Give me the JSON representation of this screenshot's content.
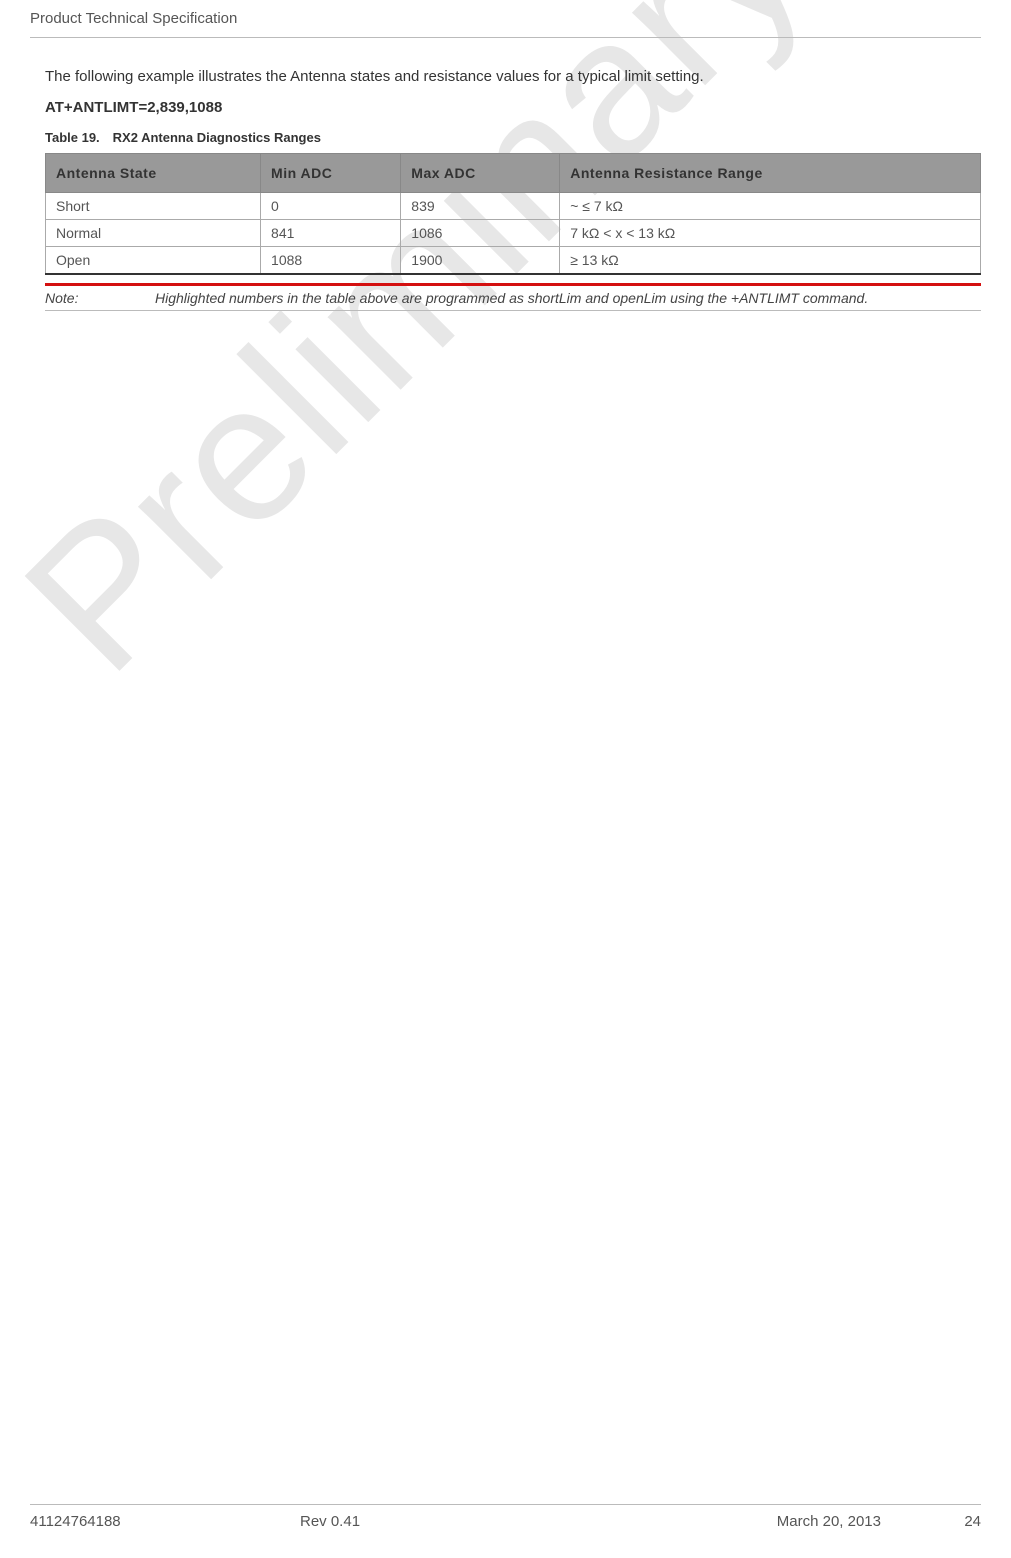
{
  "header": {
    "title": "Product Technical Specification"
  },
  "content": {
    "intro": "The following example illustrates the Antenna states and resistance values for a typical limit setting.",
    "command": "AT+ANTLIMT=2,839,1088",
    "tableCaption": "Table 19. RX2 Antenna Diagnostics Ranges",
    "table": {
      "columns": [
        "Antenna State",
        "Min ADC",
        "Max ADC",
        "Antenna Resistance Range"
      ],
      "rows": [
        [
          "Short",
          "0",
          "839",
          "~ ≤ 7 kΩ"
        ],
        [
          "Normal",
          "841",
          "1086",
          "7 kΩ < x < 13 kΩ"
        ],
        [
          "Open",
          "1088",
          "1900",
          "≥ 13 kΩ"
        ]
      ]
    },
    "note": {
      "label": "Note:",
      "text": "Highlighted numbers in the table above are programmed as shortLim and openLim using the +ANTLIMT command."
    }
  },
  "watermark": {
    "text": "Preliminary",
    "color": "#e7e7e7",
    "fontSize": 195
  },
  "footer": {
    "docId": "41124764188",
    "rev": "Rev 0.41",
    "date": "March 20, 2013",
    "page": "24"
  },
  "colors": {
    "headerBg": "#999999",
    "borderGray": "#aaaaaa",
    "noteBar": "#d41010",
    "textDark": "#333333",
    "textMedium": "#555555"
  }
}
